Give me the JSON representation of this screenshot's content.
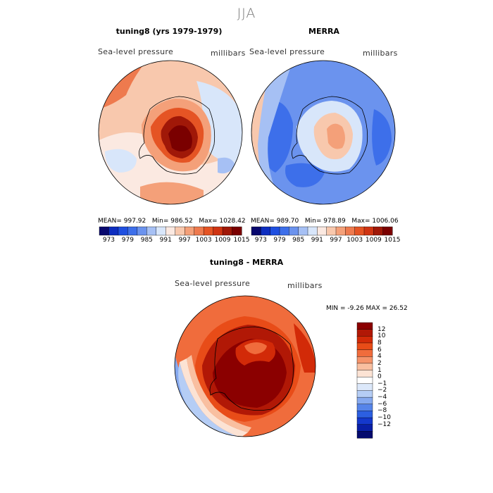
{
  "figure": {
    "title": "JJA"
  },
  "panels": {
    "model": {
      "title": "tuning8 (yrs 1979-1979)",
      "variable": "Sea-level pressure",
      "units": "millibars",
      "stats": {
        "mean_label": "MEAN=",
        "mean": "997.92",
        "min_label": "Min=",
        "min": "986.52",
        "max_label": "Max=",
        "max": "1028.42"
      }
    },
    "obs": {
      "title": "MERRA",
      "variable": "Sea-level pressure",
      "units": "millibars",
      "stats": {
        "mean_label": "MEAN=",
        "mean": "989.70",
        "min_label": "Min=",
        "min": "978.89",
        "max_label": "Max=",
        "max": "1006.06"
      }
    },
    "diff": {
      "title": "tuning8 - MERRA",
      "variable": "Sea-level pressure",
      "units": "millibars",
      "range_text": "MIN =   -9.26  MAX =   26.52"
    }
  },
  "colorbars": {
    "abs": {
      "ticks": [
        "973",
        "979",
        "985",
        "991",
        "997",
        "1003",
        "1009",
        "1015"
      ],
      "colors": [
        "#08086e",
        "#0d2dbf",
        "#1f4fe0",
        "#3d6fea",
        "#6b93ee",
        "#a6c0f4",
        "#d8e6fa",
        "#fbe9e1",
        "#f8c8ad",
        "#f4a079",
        "#ee7a4e",
        "#e55424",
        "#cf3412",
        "#a01808",
        "#7a0000"
      ]
    },
    "diff": {
      "ticks": [
        "12",
        "10",
        "8",
        "6",
        "4",
        "2",
        "1",
        "0",
        "−1",
        "−2",
        "−4",
        "−6",
        "−8",
        "−10",
        "−12"
      ],
      "colors": [
        "#8b0000",
        "#b11806",
        "#d22a08",
        "#e84c18",
        "#f06c3c",
        "#f5936a",
        "#f9bfa0",
        "#fce3d4",
        "#ffffff",
        "#dce8fa",
        "#b5cdf5",
        "#86a9ef",
        "#5684e9",
        "#2c5fe1",
        "#1438cc",
        "#091fa6",
        "#040a6e"
      ]
    }
  },
  "map_colors": {
    "ice_shelf": "#f6c5a8",
    "coast": "#000000"
  }
}
